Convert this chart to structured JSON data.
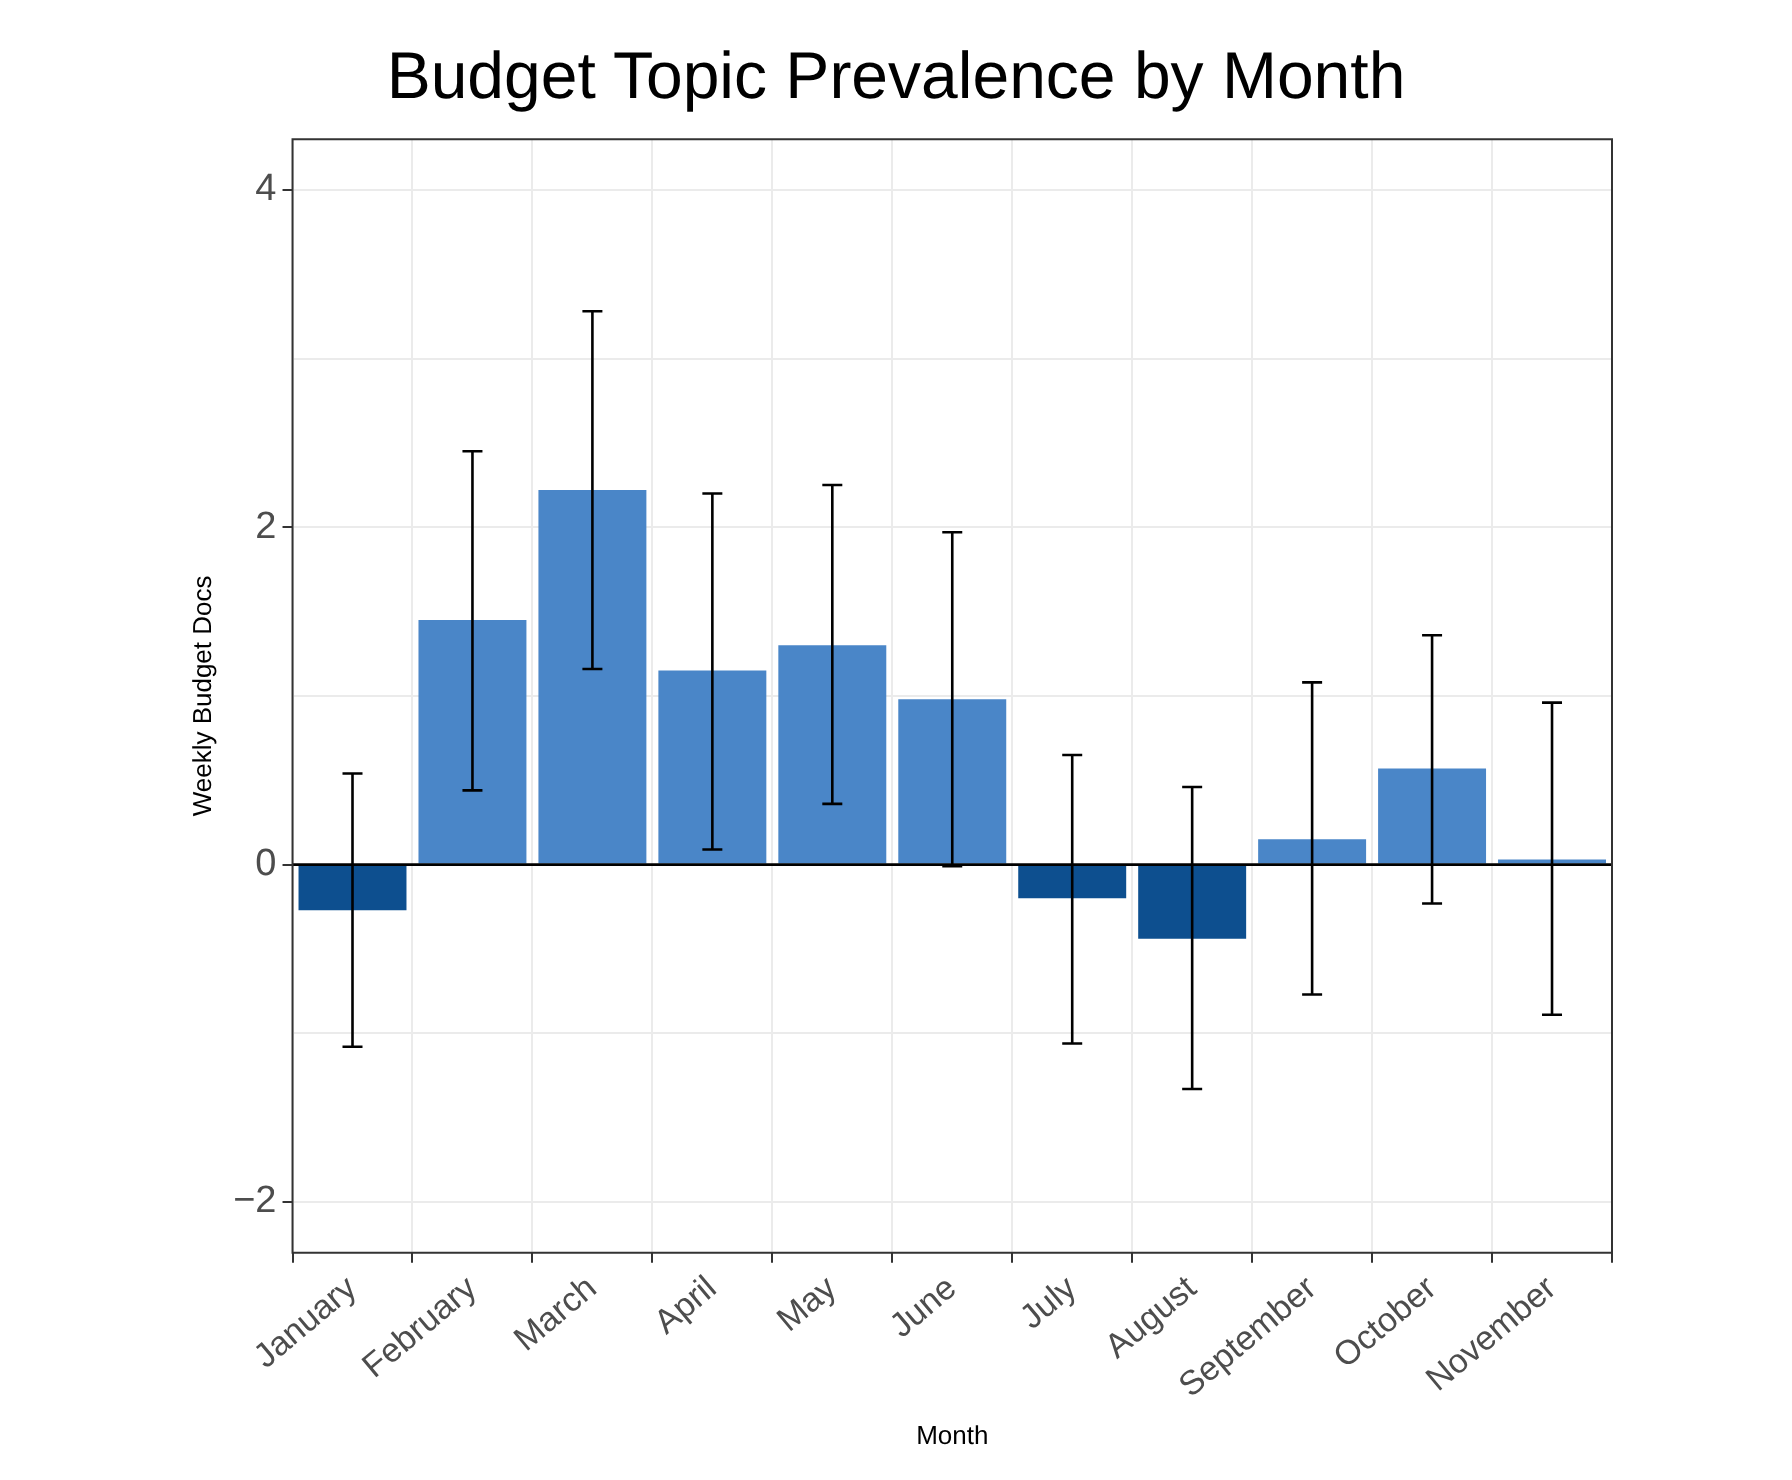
{
  "chart_data": {
    "type": "bar",
    "title": "Budget Topic Prevalence by Month",
    "xlabel": "Month",
    "ylabel": "Weekly Budget Docs",
    "categories": [
      "January",
      "February",
      "March",
      "April",
      "May",
      "June",
      "July",
      "August",
      "September",
      "October",
      "November"
    ],
    "values": [
      -0.27,
      1.45,
      2.22,
      1.15,
      1.3,
      0.98,
      -0.2,
      -0.44,
      0.15,
      0.57,
      0.03
    ],
    "colors": [
      "#0d4f8f",
      "#4a86c8",
      "#4a86c8",
      "#4a86c8",
      "#4a86c8",
      "#4a86c8",
      "#0d4f8f",
      "#0d4f8f",
      "#4a86c8",
      "#4a86c8",
      "#4a86c8"
    ],
    "errors": [
      [
        -1.08,
        0.54
      ],
      [
        0.44,
        2.45
      ],
      [
        1.16,
        3.28
      ],
      [
        0.09,
        2.2
      ],
      [
        0.36,
        2.25
      ],
      [
        -0.01,
        1.97
      ],
      [
        -1.06,
        0.65
      ],
      [
        -1.33,
        0.46
      ],
      [
        -0.77,
        1.08
      ],
      [
        -0.23,
        1.36
      ],
      [
        -0.89,
        0.96
      ]
    ],
    "ylim": [
      -2.3,
      4.3
    ],
    "yticks": [
      -2,
      {
        "value": -1,
        "label": null
      },
      0,
      {
        "value": 1,
        "label": null
      },
      2,
      {
        "value": 3,
        "label": null
      },
      4
    ],
    "ref_lines": [
      {
        "axis": "y",
        "value": 0,
        "color": "#000000"
      }
    ],
    "grid": true,
    "legend": false
  }
}
